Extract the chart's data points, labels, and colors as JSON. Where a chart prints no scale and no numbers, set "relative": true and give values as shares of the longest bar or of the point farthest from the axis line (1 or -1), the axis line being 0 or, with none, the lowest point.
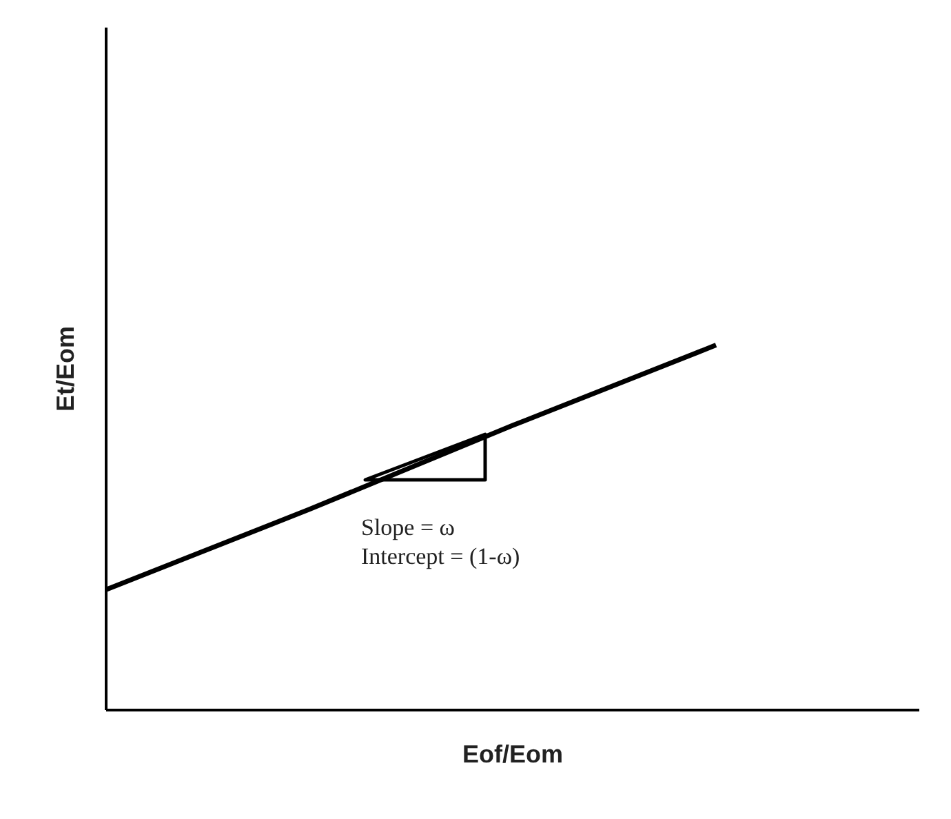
{
  "chart_data": {
    "type": "line",
    "relative": true,
    "xlabel": "Eof/Eom",
    "ylabel": "Et/Eom",
    "categories": [
      null,
      null,
      null,
      null,
      null
    ],
    "series": [
      {
        "color": "#000000",
        "values": [
          0.33,
          0.55,
          0.78,
          1,
          null
        ]
      }
    ],
    "annotations": [
      "Slope = ω",
      "Intercept = (1-ω)"
    ],
    "grid": false,
    "marker": "none",
    "line_style": "solid"
  }
}
